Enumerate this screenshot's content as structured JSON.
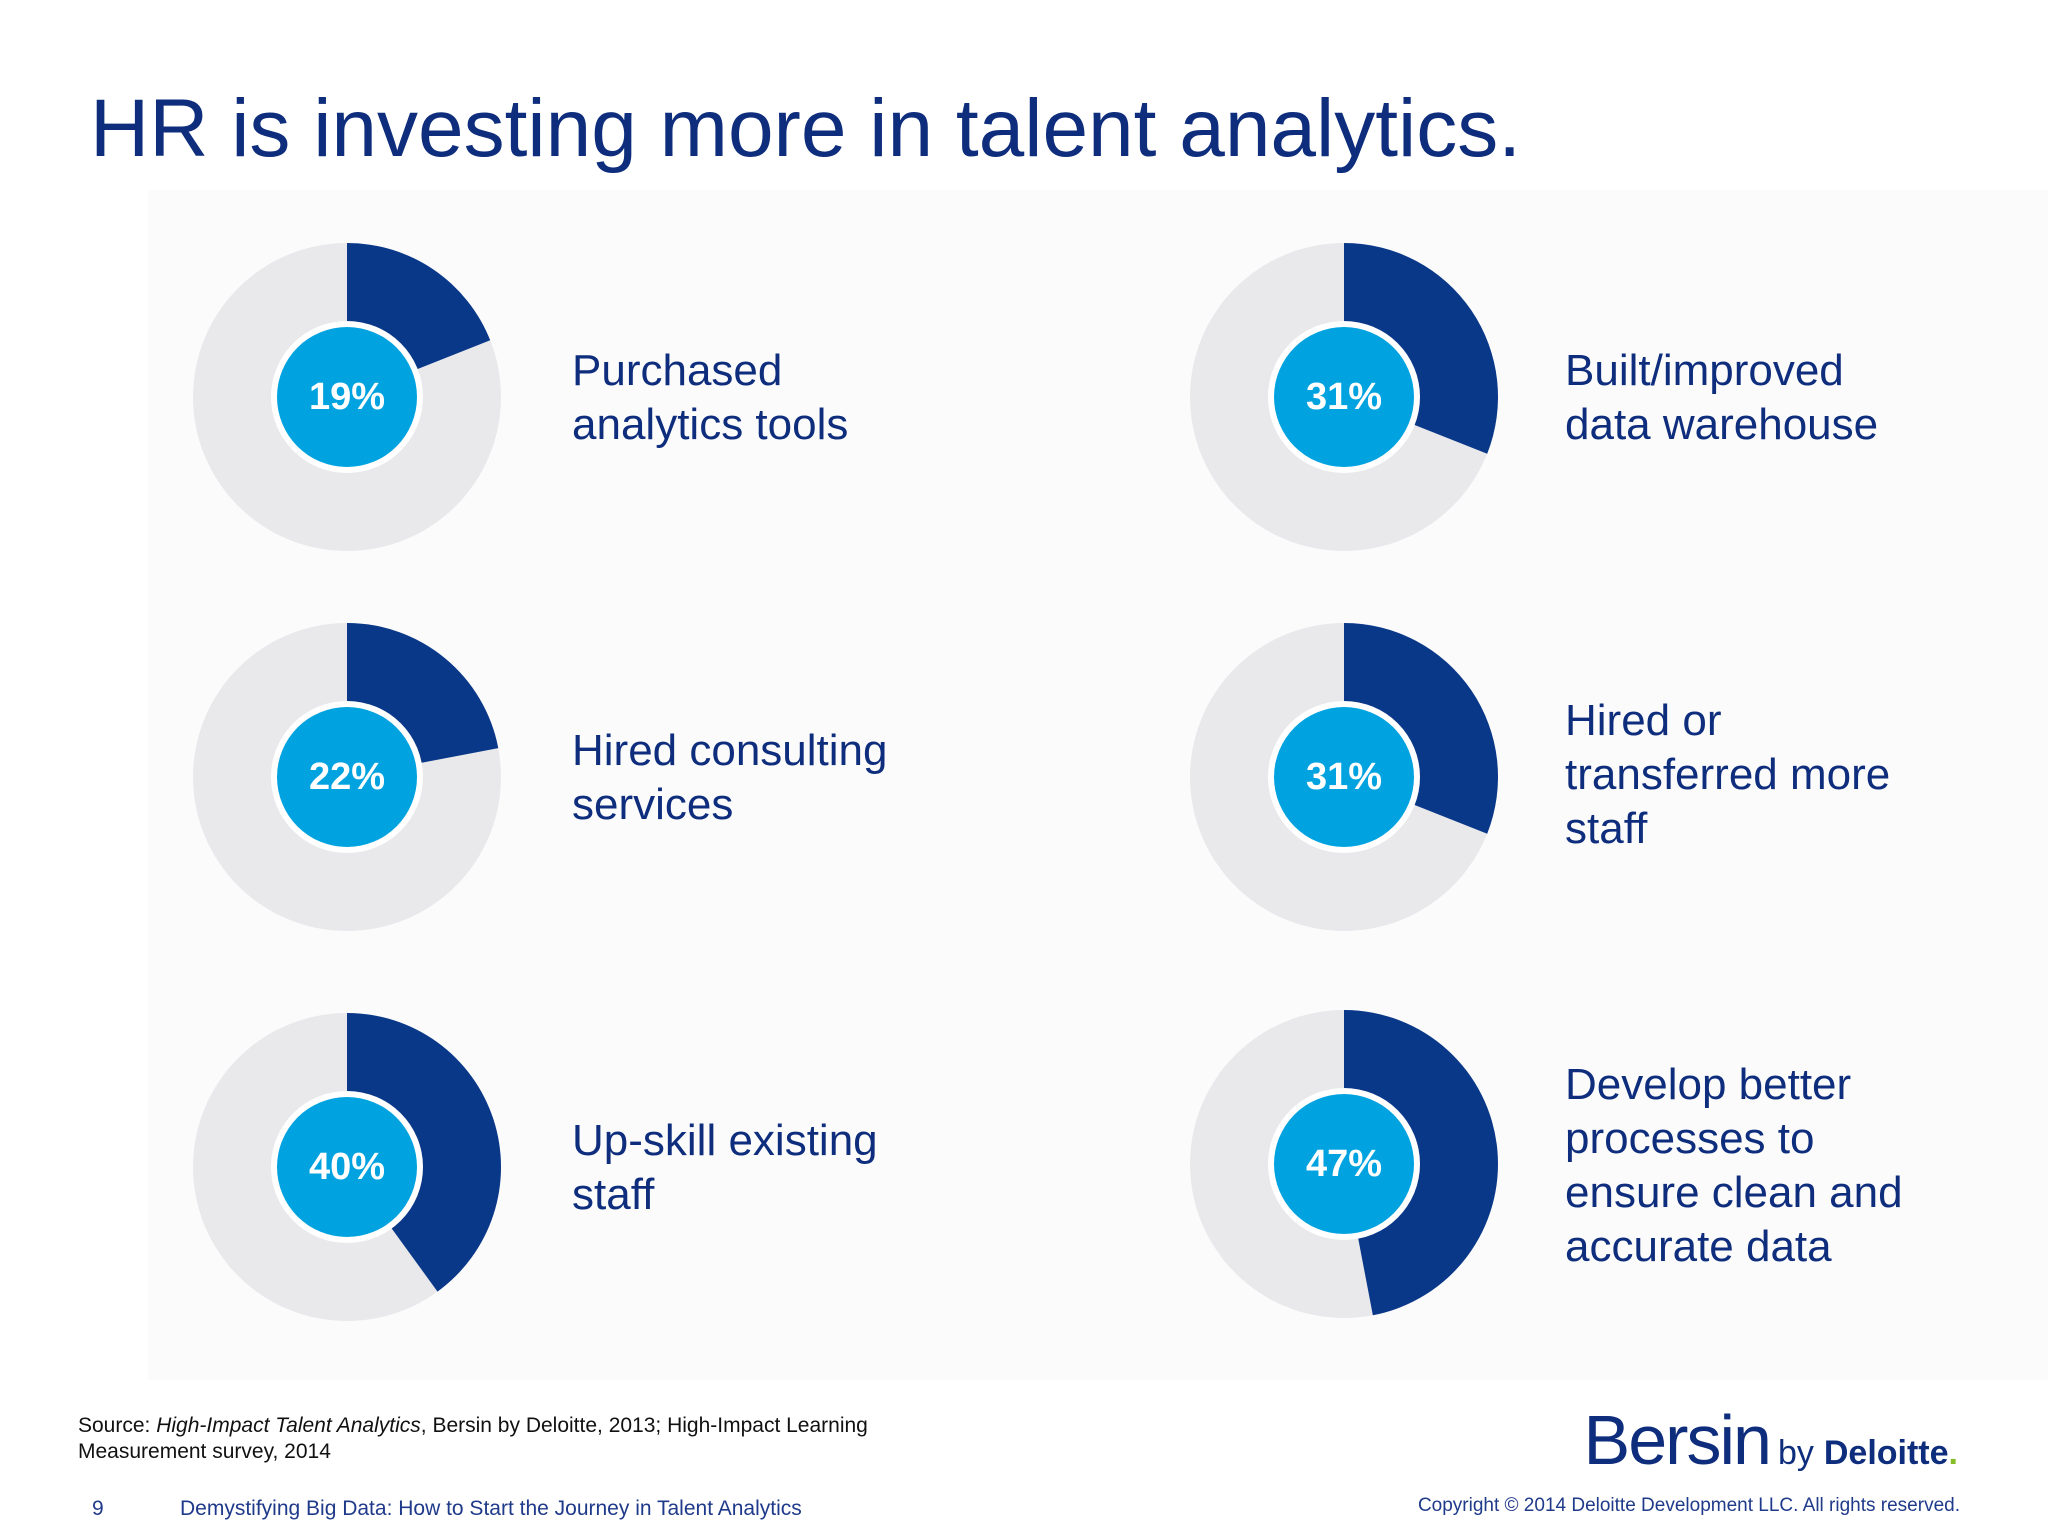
{
  "title": "HR is investing more in talent analytics.",
  "colors": {
    "title": "#0e2d7c",
    "segment_filled": "#0a3889",
    "segment_remaining": "#e9e9ec",
    "center_circle": "#00a3e0",
    "brand_dot": "#86bc25"
  },
  "chart_data": [
    {
      "type": "pie",
      "title": "",
      "values": [
        19,
        81
      ],
      "display": "19%",
      "label": "Purchased\nanalytics tools"
    },
    {
      "type": "pie",
      "title": "",
      "values": [
        31,
        69
      ],
      "display": "31%",
      "label": "Built/improved\ndata warehouse"
    },
    {
      "type": "pie",
      "title": "",
      "values": [
        22,
        78
      ],
      "display": "22%",
      "label": "Hired consulting\nservices"
    },
    {
      "type": "pie",
      "title": "",
      "values": [
        31,
        69
      ],
      "display": "31%",
      "label": "Hired or\ntransferred more\nstaff"
    },
    {
      "type": "pie",
      "title": "",
      "values": [
        40,
        60
      ],
      "display": "40%",
      "label": "Up-skill existing\nstaff"
    },
    {
      "type": "pie",
      "title": "",
      "values": [
        47,
        53
      ],
      "display": "47%",
      "label": "Develop better\nprocesses to\nensure clean and\naccurate data"
    }
  ],
  "source": {
    "prefix": "Source: ",
    "title_italic": "High-Impact Talent Analytics",
    "rest_line1": ", Bersin by Deloitte, 2013; High-Impact Learning",
    "line2": "Measurement survey, 2014"
  },
  "footer": {
    "page_number": "9",
    "presentation_title": "Demystifying Big Data: How to Start the Journey in Talent Analytics",
    "copyright": "Copyright © 2014 Deloitte Development LLC. All rights reserved."
  },
  "logo": {
    "main": "Bersin",
    "by": "by",
    "brand": "Deloitte",
    "dot": "."
  }
}
